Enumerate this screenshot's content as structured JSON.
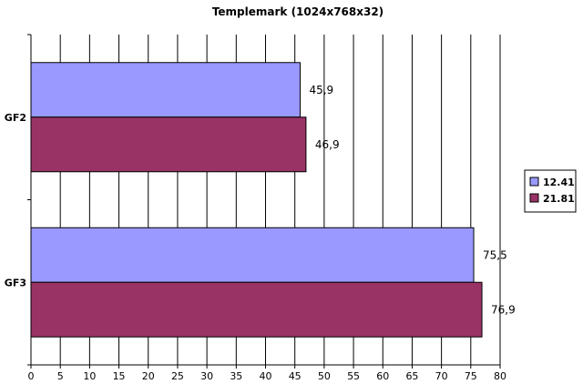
{
  "chart_data": {
    "type": "bar",
    "orientation": "horizontal",
    "title": "Templemark (1024x768x32)",
    "categories": [
      "GF2",
      "GF3"
    ],
    "series": [
      {
        "name": "12.41",
        "color": "#9999ff",
        "values": [
          45.9,
          75.5
        ],
        "labels": [
          "45,9",
          "75,5"
        ]
      },
      {
        "name": "21.81",
        "color": "#993366",
        "values": [
          46.9,
          76.9
        ],
        "labels": [
          "46,9",
          "76,9"
        ]
      }
    ],
    "xlim": [
      0,
      80
    ],
    "xticks": [
      0,
      5,
      10,
      15,
      20,
      25,
      30,
      35,
      40,
      45,
      50,
      55,
      60,
      65,
      70,
      75,
      80
    ],
    "grid": true,
    "legend_position": "right",
    "xlabel": "",
    "ylabel": ""
  }
}
